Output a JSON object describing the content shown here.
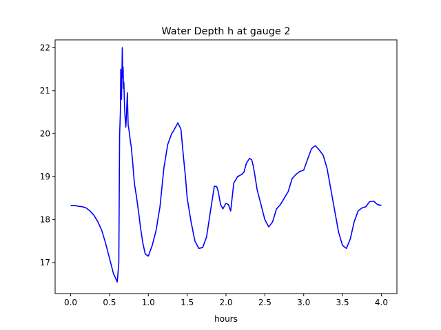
{
  "chart_data": {
    "type": "line",
    "title": "Water Depth h at gauge 2",
    "xlabel": "hours",
    "ylabel": "",
    "xlim": [
      -0.2,
      4.2
    ],
    "ylim": [
      16.28,
      22.18
    ],
    "xticks": [
      0.0,
      0.5,
      1.0,
      1.5,
      2.0,
      2.5,
      3.0,
      3.5,
      4.0
    ],
    "xtick_labels": [
      "0.0",
      "0.5",
      "1.0",
      "1.5",
      "2.0",
      "2.5",
      "3.0",
      "3.5",
      "4.0"
    ],
    "yticks": [
      17,
      18,
      19,
      20,
      21,
      22
    ],
    "ytick_labels": [
      "17",
      "18",
      "19",
      "20",
      "21",
      "22"
    ],
    "grid": false,
    "series": [
      {
        "color": "#0000ff",
        "x": [
          0.0,
          0.05,
          0.1,
          0.15,
          0.2,
          0.25,
          0.3,
          0.35,
          0.4,
          0.45,
          0.5,
          0.55,
          0.6,
          0.62,
          0.63,
          0.64,
          0.645,
          0.655,
          0.665,
          0.67,
          0.675,
          0.68,
          0.685,
          0.69,
          0.695,
          0.7,
          0.71,
          0.72,
          0.73,
          0.74,
          0.75,
          0.76,
          0.77,
          0.78,
          0.79,
          0.8,
          0.82,
          0.85,
          0.88,
          0.9,
          0.93,
          0.96,
          1.0,
          1.05,
          1.1,
          1.15,
          1.2,
          1.25,
          1.3,
          1.32,
          1.35,
          1.38,
          1.42,
          1.45,
          1.48,
          1.5,
          1.55,
          1.6,
          1.65,
          1.7,
          1.75,
          1.8,
          1.85,
          1.88,
          1.9,
          1.93,
          1.96,
          2.0,
          2.03,
          2.06,
          2.1,
          2.15,
          2.2,
          2.23,
          2.26,
          2.3,
          2.33,
          2.35,
          2.37,
          2.4,
          2.45,
          2.5,
          2.55,
          2.6,
          2.65,
          2.7,
          2.75,
          2.8,
          2.85,
          2.9,
          2.95,
          3.0,
          3.05,
          3.1,
          3.15,
          3.2,
          3.25,
          3.3,
          3.35,
          3.4,
          3.45,
          3.5,
          3.55,
          3.6,
          3.65,
          3.7,
          3.75,
          3.8,
          3.85,
          3.9,
          3.95,
          4.0
        ],
        "y": [
          18.33,
          18.33,
          18.31,
          18.3,
          18.27,
          18.2,
          18.1,
          17.95,
          17.75,
          17.45,
          17.1,
          16.75,
          16.55,
          17.0,
          19.95,
          20.5,
          21.5,
          20.8,
          22.0,
          21.3,
          21.55,
          21.05,
          21.2,
          20.85,
          20.6,
          20.4,
          20.15,
          20.5,
          20.95,
          20.2,
          20.1,
          19.95,
          19.8,
          19.7,
          19.5,
          19.3,
          18.85,
          18.5,
          18.1,
          17.8,
          17.45,
          17.2,
          17.15,
          17.4,
          17.75,
          18.3,
          19.2,
          19.75,
          20.0,
          20.05,
          20.15,
          20.25,
          20.1,
          19.5,
          18.95,
          18.5,
          17.95,
          17.5,
          17.33,
          17.35,
          17.6,
          18.2,
          18.78,
          18.77,
          18.65,
          18.35,
          18.25,
          18.38,
          18.35,
          18.2,
          18.85,
          19.0,
          19.05,
          19.1,
          19.3,
          19.42,
          19.4,
          19.25,
          19.05,
          18.7,
          18.35,
          18.0,
          17.83,
          17.95,
          18.25,
          18.35,
          18.5,
          18.65,
          18.95,
          19.05,
          19.12,
          19.15,
          19.4,
          19.65,
          19.72,
          19.62,
          19.5,
          19.2,
          18.7,
          18.2,
          17.7,
          17.4,
          17.33,
          17.55,
          17.95,
          18.2,
          18.27,
          18.3,
          18.42,
          18.43,
          18.35,
          18.33
        ]
      }
    ]
  }
}
